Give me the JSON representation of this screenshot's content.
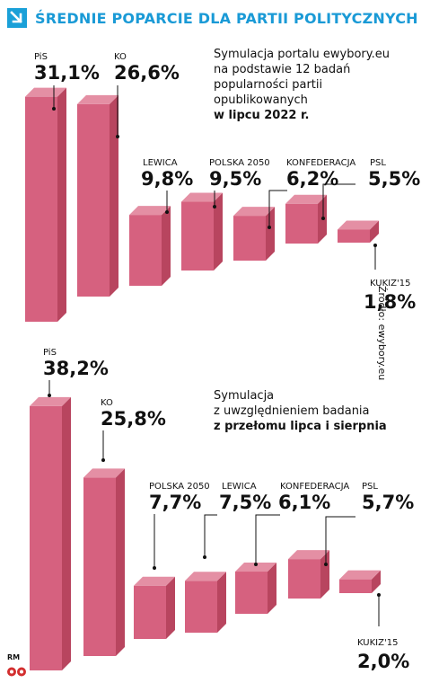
{
  "header": {
    "title": "ŚREDNIE POPARCIE DLA PARTII POLITYCZNYCH",
    "accent_color": "#1a9ad6",
    "icon": "arrow-down-right-icon"
  },
  "panel1": {
    "note_lines": [
      "Symulacja portalu ewybory.eu",
      "na podstawie 12 badań",
      "popularności partii",
      "opublikowanych"
    ],
    "note_bold": "w lipcu 2022 r."
  },
  "panel2": {
    "note_lines": [
      "Symulacja",
      "z uwzględnieniem badania"
    ],
    "note_bold": "z przełomu lipca i sierpnia"
  },
  "source": "Źródło: ewybory.eu",
  "footer": {
    "credit": "RM",
    "logo": "rp-logo-icon"
  },
  "colors": {
    "bar_front": "#d6617f",
    "bar_side": "#b8455f",
    "bar_top": "#e48fa4"
  },
  "chart_data": [
    {
      "type": "bar",
      "categories": [
        "PiS",
        "KO",
        "LEWICA",
        "POLSKA 2050",
        "KONFEDERACJA",
        "PSL",
        "KUKIZ'15"
      ],
      "values": [
        31.1,
        26.6,
        9.8,
        9.5,
        6.2,
        5.5,
        1.8
      ],
      "value_labels": [
        "31,1%",
        "26,6%",
        "9,8%",
        "9,5%",
        "6,2%",
        "5,5%",
        "1,8%"
      ],
      "unit": "%"
    },
    {
      "type": "bar",
      "categories": [
        "PiS",
        "KO",
        "POLSKA 2050",
        "LEWICA",
        "KONFEDERACJA",
        "PSL",
        "KUKIZ'15"
      ],
      "values": [
        38.2,
        25.8,
        7.7,
        7.5,
        6.1,
        5.7,
        2.0
      ],
      "value_labels": [
        "38,2%",
        "25,8%",
        "7,7%",
        "7,5%",
        "6,1%",
        "5,7%",
        "2,0%"
      ],
      "unit": "%"
    }
  ]
}
